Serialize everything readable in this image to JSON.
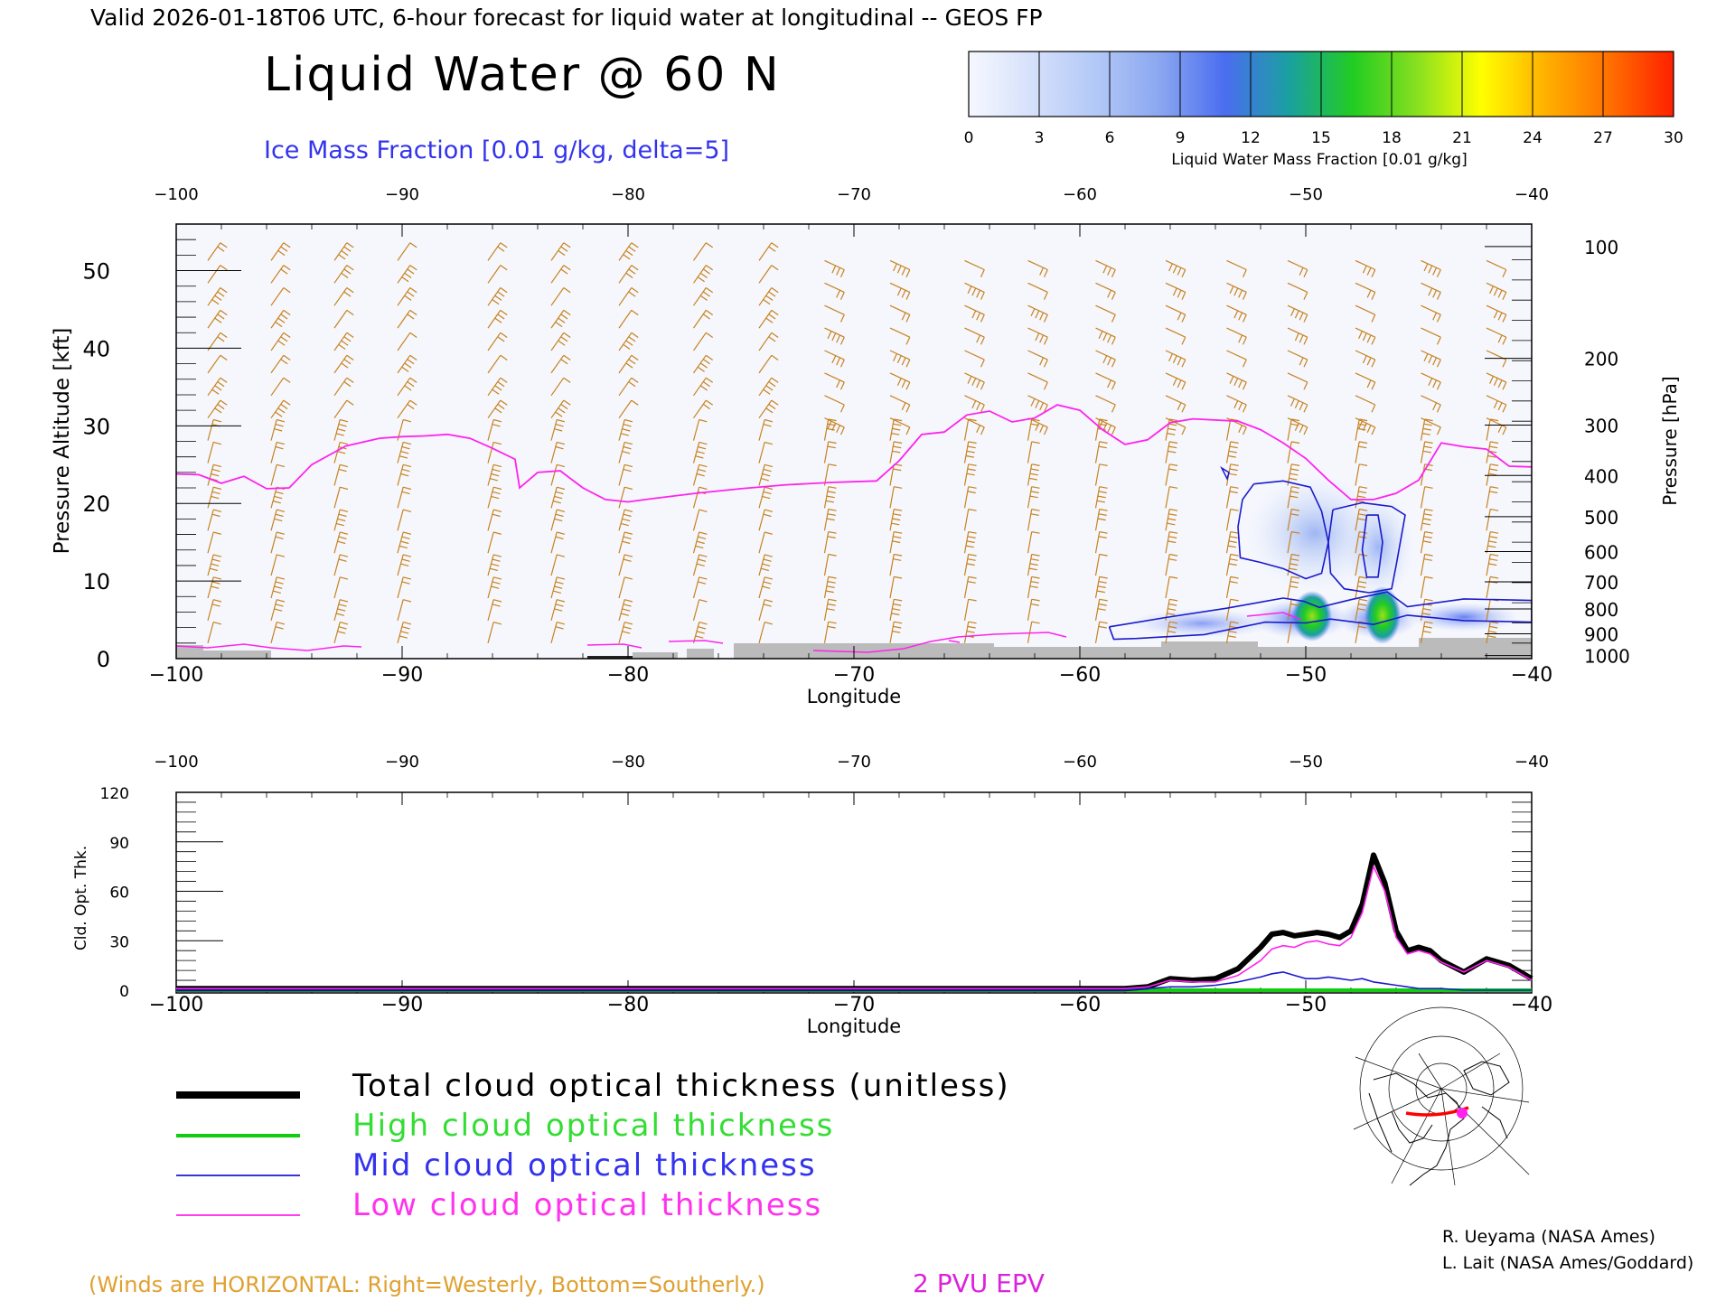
{
  "header": {
    "valid_line": "Valid 2026-01-18T06 UTC, 6-hour forecast for liquid water at longitudinal -- GEOS FP",
    "title": "Liquid Water @ 60 N",
    "contour_label": "Ice Mass Fraction [0.01 g/kg, delta=5]"
  },
  "colorbar": {
    "ticks": [
      "0",
      "3",
      "6",
      "9",
      "12",
      "15",
      "18",
      "21",
      "24",
      "27",
      "30"
    ],
    "label": "Liquid Water Mass Fraction [0.01 g/kg]",
    "colors": [
      "#f6f8fe",
      "#d5e0fb",
      "#b2c8f7",
      "#8aa6f0",
      "#4a6df0",
      "#1aa0a0",
      "#22cc22",
      "#88e020",
      "#ffff00",
      "#ffb000",
      "#ff7000",
      "#ff2000"
    ]
  },
  "colors": {
    "wind": "#c8821e",
    "epv": "#ff22ee",
    "ice": "#1a1acc",
    "ground": "#bbbbbb",
    "total": "#000000",
    "high": "#11cc11",
    "mid": "#1a1acc",
    "low": "#ff22ee"
  },
  "chart_data": [
    {
      "type": "heatmap",
      "title": "Liquid Water @ 60 N",
      "xlabel": "Longitude",
      "ylabel": "Pressure Altitude [kft]",
      "y2label": "Pressure [hPa]",
      "xlim": [
        -100,
        -40
      ],
      "ylim": [
        0,
        56
      ],
      "xticks": [
        "-100",
        "-90",
        "-80",
        "-70",
        "-60",
        "-50",
        "-40"
      ],
      "yticks": [
        "0",
        "10",
        "20",
        "30",
        "40",
        "50"
      ],
      "pressure_ticks": [
        {
          "label": "100",
          "kft": 53.1
        },
        {
          "label": "200",
          "kft": 38.7
        },
        {
          "label": "300",
          "kft": 30.1
        },
        {
          "label": "400",
          "kft": 23.6
        },
        {
          "label": "500",
          "kft": 18.3
        },
        {
          "label": "600",
          "kft": 13.8
        },
        {
          "label": "700",
          "kft": 9.9
        },
        {
          "label": "800",
          "kft": 6.4
        },
        {
          "label": "900",
          "kft": 3.2
        },
        {
          "label": "1000",
          "kft": 0.4
        }
      ],
      "epv_2pvu_line": [
        [
          -100,
          23.8
        ],
        [
          -99,
          23.7
        ],
        [
          -98,
          22.6
        ],
        [
          -97,
          23.5
        ],
        [
          -96,
          21.9
        ],
        [
          -95,
          22
        ],
        [
          -94,
          25
        ],
        [
          -92.5,
          27.4
        ],
        [
          -91,
          28.4
        ],
        [
          -90,
          28.6
        ],
        [
          -89,
          28.7
        ],
        [
          -88,
          28.9
        ],
        [
          -87,
          28.4
        ],
        [
          -86,
          27.1
        ],
        [
          -85,
          25.7
        ],
        [
          -84.8,
          22
        ],
        [
          -84,
          24
        ],
        [
          -83,
          24.2
        ],
        [
          -82,
          22
        ],
        [
          -81,
          20.5
        ],
        [
          -80,
          20.2
        ],
        [
          -79,
          20.6
        ],
        [
          -77,
          21.3
        ],
        [
          -75,
          21.9
        ],
        [
          -73,
          22.4
        ],
        [
          -71,
          22.7
        ],
        [
          -69,
          22.9
        ],
        [
          -68,
          25.5
        ],
        [
          -67,
          28.9
        ],
        [
          -66,
          29.2
        ],
        [
          -65,
          31.4
        ],
        [
          -64,
          31.9
        ],
        [
          -63,
          30.5
        ],
        [
          -62,
          31
        ],
        [
          -61,
          32.7
        ],
        [
          -60,
          32
        ],
        [
          -59,
          29.5
        ],
        [
          -58,
          27.6
        ],
        [
          -57,
          28.2
        ],
        [
          -56,
          30.4
        ],
        [
          -55,
          30.9
        ],
        [
          -53,
          30.6
        ],
        [
          -52,
          29.5
        ],
        [
          -51,
          27.8
        ],
        [
          -50,
          25.8
        ],
        [
          -49,
          23
        ],
        [
          -48,
          20.5
        ],
        [
          -47,
          20.5
        ],
        [
          -46,
          21.3
        ],
        [
          -45,
          23
        ],
        [
          -44,
          27.8
        ],
        [
          -43,
          27.3
        ],
        [
          -42,
          27
        ],
        [
          -41,
          24.8
        ],
        [
          -40,
          24.7
        ]
      ],
      "ice_mass_fraction_contours": [
        [
          [
            -52.3,
            22.5
          ],
          [
            -51,
            22.9
          ],
          [
            -49.8,
            22.1
          ],
          [
            -49.3,
            19
          ],
          [
            -49,
            15
          ],
          [
            -49.3,
            11
          ],
          [
            -50,
            10.3
          ],
          [
            -51,
            11.6
          ],
          [
            -52,
            12.4
          ],
          [
            -52.9,
            13
          ],
          [
            -53,
            17
          ],
          [
            -52.8,
            20.5
          ],
          [
            -52.3,
            22.5
          ]
        ],
        [
          [
            -48.8,
            19.2
          ],
          [
            -47.5,
            20.1
          ],
          [
            -46.2,
            19.6
          ],
          [
            -45.6,
            18.5
          ],
          [
            -46,
            12
          ],
          [
            -46.2,
            9
          ],
          [
            -47.2,
            8.5
          ],
          [
            -48.3,
            9
          ],
          [
            -48.9,
            11
          ],
          [
            -49,
            15
          ],
          [
            -48.8,
            19.2
          ]
        ],
        [
          [
            -47.3,
            18.5
          ],
          [
            -46.8,
            18.5
          ],
          [
            -46.6,
            15
          ],
          [
            -46.8,
            10.5
          ],
          [
            -47.3,
            10.5
          ],
          [
            -47.5,
            14
          ],
          [
            -47.3,
            18.5
          ]
        ],
        [
          [
            -58.7,
            4.1
          ],
          [
            -56.2,
            5.3
          ],
          [
            -53.5,
            6.5
          ],
          [
            -51,
            7.8
          ],
          [
            -50.1,
            7.4
          ],
          [
            -49.4,
            6.6
          ],
          [
            -48,
            7.6
          ],
          [
            -46.4,
            8.6
          ],
          [
            -45.5,
            6.7
          ],
          [
            -43,
            7.7
          ],
          [
            -40,
            7.5
          ],
          [
            -40,
            4.7
          ],
          [
            -43,
            4.9
          ],
          [
            -45.5,
            5.6
          ],
          [
            -47,
            4.4
          ],
          [
            -48.9,
            5.1
          ],
          [
            -50,
            4.6
          ],
          [
            -51.8,
            4.7
          ],
          [
            -54.5,
            3.1
          ],
          [
            -57.5,
            2.6
          ],
          [
            -58.5,
            2.5
          ],
          [
            -58.7,
            4.1
          ]
        ]
      ],
      "liquid_water_maxima": [
        {
          "lon": -49.6,
          "kft": 5.8,
          "value": 16
        },
        {
          "lon": -46.8,
          "kft": 5.6,
          "value": 17
        }
      ],
      "wind_columns_lon": [
        -98.6,
        -95.8,
        -93,
        -90.2,
        -86.2,
        -83.4,
        -80.4,
        -77.1,
        -74.2,
        -71.3,
        -68.4,
        -65.1,
        -62.3,
        -59.3,
        -56.2,
        -53.5,
        -50.8,
        -47.8,
        -44.9,
        -42
      ]
    },
    {
      "type": "line",
      "xlabel": "Longitude",
      "ylabel": "Cld. Opt. Thk.",
      "xlim": [
        -100,
        -40
      ],
      "ylim": [
        0,
        120
      ],
      "xticks": [
        "-100",
        "-90",
        "-80",
        "-70",
        "-60",
        "-50",
        "-40"
      ],
      "yticks": [
        "0",
        "30",
        "60",
        "90",
        "120"
      ],
      "x": [
        -100,
        -95,
        -90,
        -85,
        -80,
        -75,
        -70,
        -65,
        -60,
        -58,
        -57,
        -56,
        -55,
        -54,
        -53,
        -52,
        -51.5,
        -51,
        -50.5,
        -50,
        -49.5,
        -49,
        -48.5,
        -48,
        -47.5,
        -47,
        -46.5,
        -46,
        -45.5,
        -45,
        -44.5,
        -44,
        -43,
        -42,
        -41,
        -40
      ],
      "series": [
        {
          "name": "Total cloud optical thickness (unitless)",
          "key": "total",
          "values": [
            1,
            1,
            1,
            1,
            1,
            1,
            1,
            1,
            1,
            1,
            2,
            7,
            6,
            7,
            13,
            26,
            34,
            35,
            33,
            34,
            35,
            34,
            32,
            36,
            52,
            82,
            65,
            36,
            24,
            26,
            24,
            18,
            11,
            19,
            15,
            7
          ]
        },
        {
          "name": "High cloud optical thickness",
          "key": "high",
          "values": [
            0,
            0,
            0,
            0,
            0,
            0,
            0,
            0,
            0,
            0,
            0,
            0,
            0,
            0,
            0,
            0,
            0,
            0,
            0,
            0,
            0,
            0,
            0,
            0,
            0,
            0,
            0,
            0,
            0,
            0,
            0,
            0,
            0,
            0,
            0,
            0
          ]
        },
        {
          "name": "Mid cloud optical thickness",
          "key": "mid",
          "values": [
            0,
            0,
            0,
            0,
            0,
            0,
            0,
            0,
            0,
            0,
            1,
            2,
            2,
            3,
            5,
            8,
            10,
            11,
            9,
            7,
            7,
            8,
            7,
            6,
            7,
            5,
            4,
            3,
            2,
            1,
            1,
            1,
            0,
            0,
            0,
            0
          ]
        },
        {
          "name": "Low cloud optical thickness",
          "key": "low",
          "values": [
            1,
            1,
            1,
            1,
            1,
            1,
            1,
            1,
            1,
            1,
            2,
            6,
            5,
            5,
            9,
            18,
            25,
            27,
            26,
            29,
            30,
            28,
            27,
            32,
            47,
            75,
            60,
            32,
            22,
            24,
            22,
            17,
            11,
            18,
            14,
            6
          ]
        }
      ]
    }
  ],
  "legend": {
    "total": "Total cloud optical thickness (unitless)",
    "high": "High cloud optical thickness",
    "mid": "Mid cloud optical thickness",
    "low": "Low cloud optical thickness"
  },
  "footer": {
    "winds_note": "(Winds are HORIZONTAL: Right=Westerly, Bottom=Southerly.)",
    "epv_label": "2 PVU EPV",
    "credit1": "R. Ueyama (NASA Ames)",
    "credit2": "L. Lait (NASA Ames/Goddard)"
  },
  "inset_map": {
    "marker_color": "#ff22ee",
    "track_color": "#ff0000"
  }
}
